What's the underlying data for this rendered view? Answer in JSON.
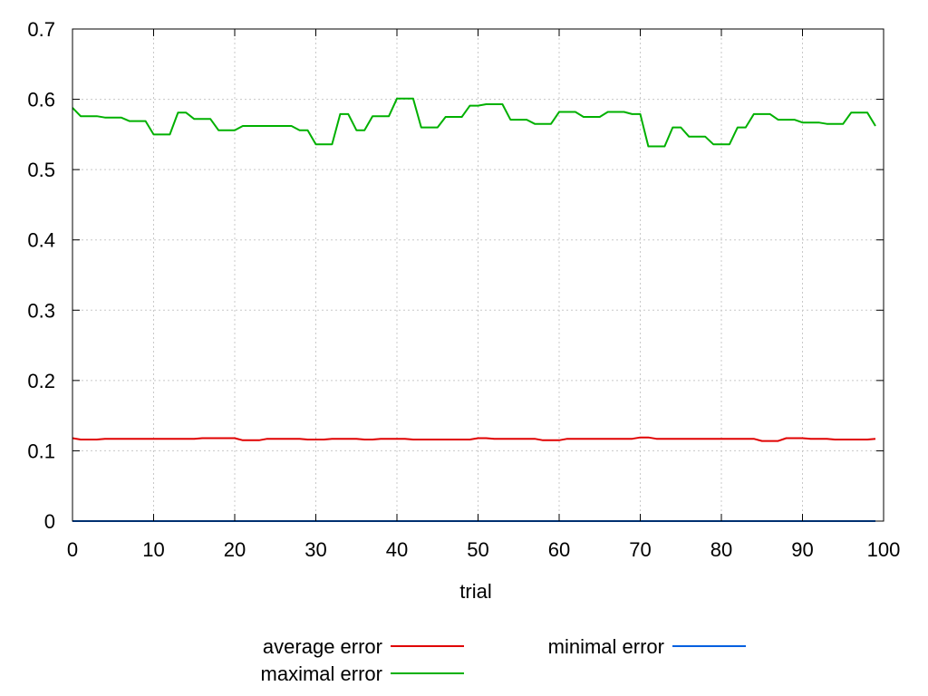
{
  "chart_data": {
    "type": "line",
    "title": "",
    "xlabel": "trial",
    "ylabel": "",
    "xlim": [
      0,
      100
    ],
    "ylim": [
      0,
      0.7
    ],
    "grid": true,
    "legend_position": "bottom",
    "x_ticks": [
      "0",
      "10",
      "20",
      "30",
      "40",
      "50",
      "60",
      "70",
      "80",
      "90",
      "100"
    ],
    "y_ticks": [
      "0",
      "0.1",
      "0.2",
      "0.3",
      "0.4",
      "0.5",
      "0.6",
      "0.7"
    ],
    "x": [
      0,
      1,
      2,
      3,
      4,
      5,
      6,
      7,
      8,
      9,
      10,
      11,
      12,
      13,
      14,
      15,
      16,
      17,
      18,
      19,
      20,
      21,
      22,
      23,
      24,
      25,
      26,
      27,
      28,
      29,
      30,
      31,
      32,
      33,
      34,
      35,
      36,
      37,
      38,
      39,
      40,
      41,
      42,
      43,
      44,
      45,
      46,
      47,
      48,
      49,
      50,
      51,
      52,
      53,
      54,
      55,
      56,
      57,
      58,
      59,
      60,
      61,
      62,
      63,
      64,
      65,
      66,
      67,
      68,
      69,
      70,
      71,
      72,
      73,
      74,
      75,
      76,
      77,
      78,
      79,
      80,
      81,
      82,
      83,
      84,
      85,
      86,
      87,
      88,
      89,
      90,
      91,
      92,
      93,
      94,
      95,
      96,
      97,
      98,
      99
    ],
    "series": [
      {
        "name": "average error",
        "color": "#e00000",
        "values": [
          0.118,
          0.116,
          0.116,
          0.116,
          0.117,
          0.117,
          0.117,
          0.117,
          0.117,
          0.117,
          0.117,
          0.117,
          0.117,
          0.117,
          0.117,
          0.117,
          0.118,
          0.118,
          0.118,
          0.118,
          0.118,
          0.115,
          0.115,
          0.115,
          0.117,
          0.117,
          0.117,
          0.117,
          0.117,
          0.116,
          0.116,
          0.116,
          0.117,
          0.117,
          0.117,
          0.117,
          0.116,
          0.116,
          0.117,
          0.117,
          0.117,
          0.117,
          0.116,
          0.116,
          0.116,
          0.116,
          0.116,
          0.116,
          0.116,
          0.116,
          0.118,
          0.118,
          0.117,
          0.117,
          0.117,
          0.117,
          0.117,
          0.117,
          0.115,
          0.115,
          0.115,
          0.117,
          0.117,
          0.117,
          0.117,
          0.117,
          0.117,
          0.117,
          0.117,
          0.117,
          0.119,
          0.119,
          0.117,
          0.117,
          0.117,
          0.117,
          0.117,
          0.117,
          0.117,
          0.117,
          0.117,
          0.117,
          0.117,
          0.117,
          0.117,
          0.114,
          0.114,
          0.114,
          0.118,
          0.118,
          0.118,
          0.117,
          0.117,
          0.117,
          0.116,
          0.116,
          0.116,
          0.116,
          0.116,
          0.117
        ]
      },
      {
        "name": "maximal error",
        "color": "#00b000",
        "values": [
          0.588,
          0.576,
          0.576,
          0.576,
          0.574,
          0.574,
          0.574,
          0.569,
          0.569,
          0.569,
          0.55,
          0.55,
          0.55,
          0.581,
          0.581,
          0.572,
          0.572,
          0.572,
          0.556,
          0.556,
          0.556,
          0.562,
          0.562,
          0.562,
          0.562,
          0.562,
          0.562,
          0.562,
          0.556,
          0.556,
          0.536,
          0.536,
          0.536,
          0.579,
          0.579,
          0.556,
          0.556,
          0.576,
          0.576,
          0.576,
          0.601,
          0.601,
          0.601,
          0.56,
          0.56,
          0.56,
          0.575,
          0.575,
          0.575,
          0.591,
          0.591,
          0.593,
          0.593,
          0.593,
          0.571,
          0.571,
          0.571,
          0.565,
          0.565,
          0.565,
          0.582,
          0.582,
          0.582,
          0.575,
          0.575,
          0.575,
          0.582,
          0.582,
          0.582,
          0.579,
          0.579,
          0.533,
          0.533,
          0.533,
          0.56,
          0.56,
          0.547,
          0.547,
          0.547,
          0.536,
          0.536,
          0.536,
          0.56,
          0.56,
          0.579,
          0.579,
          0.579,
          0.571,
          0.571,
          0.571,
          0.567,
          0.567,
          0.567,
          0.565,
          0.565,
          0.565,
          0.581,
          0.581,
          0.581,
          0.562
        ]
      },
      {
        "name": "minimal error",
        "color": "#0060e0",
        "values": [
          0,
          0,
          0,
          0,
          0,
          0,
          0,
          0,
          0,
          0,
          0,
          0,
          0,
          0,
          0,
          0,
          0,
          0,
          0,
          0,
          0,
          0,
          0,
          0,
          0,
          0,
          0,
          0,
          0,
          0,
          0,
          0,
          0,
          0,
          0,
          0,
          0,
          0,
          0,
          0,
          0,
          0,
          0,
          0,
          0,
          0,
          0,
          0,
          0,
          0,
          0,
          0,
          0,
          0,
          0,
          0,
          0,
          0,
          0,
          0,
          0,
          0,
          0,
          0,
          0,
          0,
          0,
          0,
          0,
          0,
          0,
          0,
          0,
          0,
          0,
          0,
          0,
          0,
          0,
          0,
          0,
          0,
          0,
          0,
          0,
          0,
          0,
          0,
          0,
          0,
          0,
          0,
          0,
          0,
          0,
          0,
          0,
          0,
          0,
          0
        ]
      }
    ]
  }
}
